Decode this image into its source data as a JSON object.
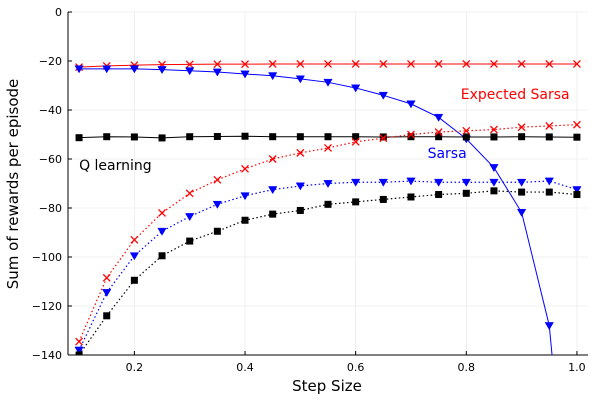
{
  "chart_data": {
    "type": "line",
    "xlabel": "Step Size",
    "ylabel": "Sum of rewards per episode",
    "xlim": [
      0.08,
      1.02
    ],
    "ylim": [
      -140,
      0
    ],
    "x_ticks": [
      0.2,
      0.4,
      0.6,
      0.8,
      1.0
    ],
    "x_tick_labels": [
      "0.2",
      "0.4",
      "0.6",
      "0.8",
      "1.0"
    ],
    "y_ticks": [
      -140,
      -120,
      -100,
      -80,
      -60,
      -40,
      -20,
      0
    ],
    "y_tick_labels": [
      "−140",
      "−120",
      "−100",
      "−80",
      "−60",
      "−40",
      "−20",
      "0"
    ],
    "grid": true,
    "legend": "none",
    "annotations": [
      {
        "text": "Expected Sarsa",
        "x": 0.79,
        "y": -35.5,
        "color": "#ff0000"
      },
      {
        "text": "Sarsa",
        "x": 0.73,
        "y": -59.5,
        "color": "#0000ff"
      },
      {
        "text": "Q learning",
        "x": 0.1,
        "y": -64.5,
        "color": "#000000"
      }
    ],
    "series": [
      {
        "group": "Expected Sarsa",
        "kind": "asymptotic",
        "color": "#ff0000",
        "marker": "x",
        "dashed": false,
        "x": [
          0.1,
          0.15,
          0.2,
          0.25,
          0.3,
          0.35,
          0.4,
          0.45,
          0.5,
          0.55,
          0.6,
          0.65,
          0.7,
          0.75,
          0.8,
          0.85,
          0.9,
          0.95,
          1.0
        ],
        "y": [
          -22.5,
          -22.0,
          -21.7,
          -21.5,
          -21.4,
          -21.3,
          -21.3,
          -21.2,
          -21.2,
          -21.2,
          -21.2,
          -21.2,
          -21.2,
          -21.2,
          -21.2,
          -21.2,
          -21.2,
          -21.2,
          -21.2
        ]
      },
      {
        "group": "Sarsa",
        "kind": "asymptotic",
        "color": "#0000ff",
        "marker": "triangle",
        "dashed": false,
        "x": [
          0.1,
          0.15,
          0.2,
          0.25,
          0.3,
          0.35,
          0.4,
          0.45,
          0.5,
          0.55,
          0.6,
          0.65,
          0.7,
          0.75,
          0.8,
          0.85,
          0.9,
          0.95
        ],
        "y": [
          -23.2,
          -23.2,
          -23.2,
          -23.5,
          -24.0,
          -24.5,
          -25.3,
          -26.0,
          -27.3,
          -28.7,
          -31.0,
          -34.0,
          -37.5,
          -43.0,
          -51.8,
          -63.5,
          -81.8,
          -128.0
        ],
        "extends_to": {
          "x": 0.955,
          "y": -140
        }
      },
      {
        "group": "Q learning",
        "kind": "asymptotic",
        "color": "#000000",
        "marker": "square",
        "dashed": false,
        "x": [
          0.1,
          0.15,
          0.2,
          0.25,
          0.3,
          0.35,
          0.4,
          0.45,
          0.5,
          0.55,
          0.6,
          0.65,
          0.7,
          0.75,
          0.8,
          0.85,
          0.9,
          0.95,
          1.0
        ],
        "y": [
          -51.3,
          -50.9,
          -51.0,
          -51.4,
          -50.9,
          -50.8,
          -50.7,
          -50.9,
          -50.9,
          -50.9,
          -50.9,
          -51.0,
          -50.9,
          -50.9,
          -51.0,
          -51.0,
          -50.9,
          -51.0,
          -51.1
        ]
      },
      {
        "group": "Expected Sarsa",
        "kind": "interim",
        "color": "#ff0000",
        "marker": "x",
        "dashed": true,
        "x": [
          0.1,
          0.15,
          0.2,
          0.25,
          0.3,
          0.35,
          0.4,
          0.45,
          0.5,
          0.55,
          0.6,
          0.65,
          0.7,
          0.75,
          0.8,
          0.85,
          0.9,
          0.95,
          1.0
        ],
        "y": [
          -134.5,
          -108.5,
          -93.0,
          -82.0,
          -74.0,
          -68.5,
          -64.0,
          -60.0,
          -57.5,
          -55.5,
          -53.0,
          -51.5,
          -50.0,
          -49.0,
          -48.5,
          -48.0,
          -47.0,
          -46.5,
          -46.0
        ]
      },
      {
        "group": "Sarsa",
        "kind": "interim",
        "color": "#0000ff",
        "marker": "triangle",
        "dashed": true,
        "x": [
          0.1,
          0.15,
          0.2,
          0.25,
          0.3,
          0.35,
          0.4,
          0.45,
          0.5,
          0.55,
          0.6,
          0.65,
          0.7,
          0.75,
          0.8,
          0.85,
          0.9,
          0.95,
          1.0
        ],
        "y": [
          -138.0,
          -114.5,
          -99.5,
          -89.5,
          -83.5,
          -78.5,
          -75.0,
          -72.5,
          -71.0,
          -70.0,
          -69.5,
          -69.5,
          -69.0,
          -69.5,
          -69.5,
          -69.5,
          -69.5,
          -69.0,
          -72.5
        ]
      },
      {
        "group": "Q learning",
        "kind": "interim",
        "color": "#000000",
        "marker": "square",
        "dashed": true,
        "x": [
          0.1,
          0.15,
          0.2,
          0.25,
          0.3,
          0.35,
          0.4,
          0.45,
          0.5,
          0.55,
          0.6,
          0.65,
          0.7,
          0.75,
          0.8,
          0.85,
          0.9,
          0.95,
          1.0
        ],
        "y": [
          -140.0,
          -124.0,
          -109.5,
          -99.5,
          -93.5,
          -89.5,
          -85.0,
          -82.5,
          -81.0,
          -78.5,
          -77.5,
          -76.5,
          -75.5,
          -74.5,
          -74.0,
          -73.0,
          -73.5,
          -73.5,
          -74.5
        ]
      }
    ]
  }
}
